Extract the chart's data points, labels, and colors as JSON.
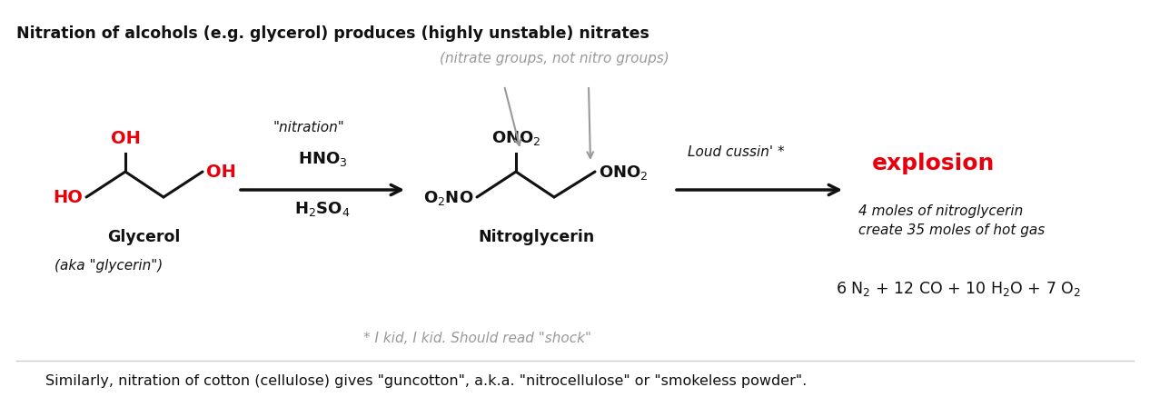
{
  "title": "Nitration of alcohols (e.g. glycerol) produces (highly unstable) nitrates",
  "bottom_note": "Similarly, nitration of cotton (cellulose) gives \"guncotton\", a.k.a. \"nitrocellulose\" or \"smokeless powder\".",
  "footnote": "* I kid, I kid. Should read \"shock\"",
  "bg_color": "#ffffff",
  "red_color": "#e8000d",
  "gray_color": "#999999",
  "black_color": "#111111",
  "fig_width": 12.66,
  "fig_height": 4.6,
  "dpi": 100
}
